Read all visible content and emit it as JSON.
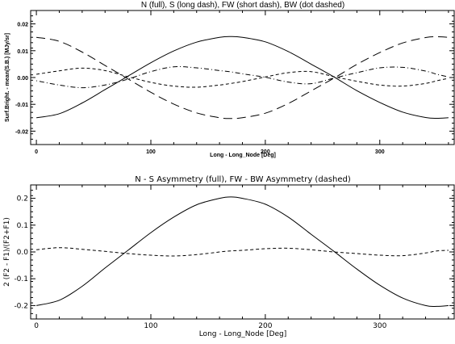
{
  "chart_data": [
    {
      "type": "line",
      "title": "N (full), S (long dash), FW (short dash), BW (dot dashed)",
      "xlabel": "Long - Long_Node [Deg]",
      "ylabel": "Surf.Bright. - mean(S.B.) [MJy/sr]",
      "xlim": [
        -5,
        365
      ],
      "ylim": [
        -0.025,
        0.025
      ],
      "xticks": [
        0,
        100,
        200,
        300
      ],
      "yticks": [
        -0.02,
        -0.01,
        0.0,
        0.01,
        0.02
      ],
      "xtick_labels": [
        "0",
        "100",
        "200",
        "300"
      ],
      "ytick_labels": [
        "-0.02",
        "-0.01",
        "0.00",
        "0.01",
        "0.02"
      ],
      "x": [
        0,
        20,
        40,
        60,
        80,
        100,
        120,
        140,
        160,
        170,
        180,
        200,
        220,
        240,
        260,
        280,
        300,
        320,
        340,
        350,
        360
      ],
      "series": [
        {
          "name": "N",
          "style": "solid",
          "values": [
            -0.015,
            -0.0135,
            -0.0095,
            -0.0045,
            0.0005,
            0.0055,
            0.0099,
            0.0132,
            0.015,
            0.0153,
            0.015,
            0.0133,
            0.0097,
            0.005,
            0.0002,
            -0.0049,
            -0.0093,
            -0.0129,
            -0.0149,
            -0.0152,
            -0.015
          ]
        },
        {
          "name": "S",
          "style": "long-dash",
          "values": [
            0.015,
            0.0135,
            0.0095,
            0.0045,
            -0.0005,
            -0.0055,
            -0.0099,
            -0.0132,
            -0.015,
            -0.0153,
            -0.015,
            -0.0133,
            -0.0097,
            -0.005,
            -0.0002,
            0.0049,
            0.0093,
            0.0129,
            0.0149,
            0.0152,
            0.015
          ]
        },
        {
          "name": "FW",
          "style": "short-dash",
          "values": [
            0.0012,
            0.0025,
            0.0035,
            0.0026,
            0.0003,
            -0.0018,
            -0.0032,
            -0.0036,
            -0.0028,
            -0.0022,
            -0.0015,
            0.0002,
            0.0018,
            0.0022,
            0.0003,
            -0.0014,
            -0.0028,
            -0.0032,
            -0.0022,
            -0.0012,
            -0.0003
          ]
        },
        {
          "name": "BW",
          "style": "dot-dash",
          "values": [
            -0.0012,
            -0.0028,
            -0.0038,
            -0.0028,
            -0.0006,
            0.0022,
            0.004,
            0.0036,
            0.0026,
            0.0021,
            0.0014,
            0.0001,
            -0.0017,
            -0.0023,
            -0.0002,
            0.0018,
            0.0036,
            0.0038,
            0.0024,
            0.0012,
            0.0002
          ]
        }
      ]
    },
    {
      "type": "line",
      "title": "N - S Asymmetry (full), FW - BW Asymmetry (dashed)",
      "xlabel": "Long - Long_Node [Deg]",
      "ylabel": "2 (F2 - F1)/(F2+F1)",
      "xlim": [
        -5,
        365
      ],
      "ylim": [
        -0.25,
        0.25
      ],
      "xticks": [
        0,
        100,
        200,
        300
      ],
      "yticks": [
        -0.2,
        -0.1,
        0.0,
        0.1,
        0.2
      ],
      "xtick_labels": [
        "0",
        "100",
        "200",
        "300"
      ],
      "ytick_labels": [
        "-0.2",
        "-0.1",
        "0.0",
        "0.1",
        "0.2"
      ],
      "x": [
        0,
        20,
        40,
        60,
        80,
        100,
        120,
        140,
        160,
        170,
        180,
        200,
        220,
        240,
        260,
        280,
        300,
        320,
        340,
        350,
        360
      ],
      "series": [
        {
          "name": "N - S",
          "style": "solid",
          "values": [
            -0.2,
            -0.18,
            -0.128,
            -0.06,
            0.006,
            0.072,
            0.13,
            0.176,
            0.2,
            0.205,
            0.2,
            0.178,
            0.13,
            0.066,
            0.002,
            -0.064,
            -0.124,
            -0.172,
            -0.2,
            -0.203,
            -0.2
          ]
        },
        {
          "name": "FW - BW",
          "style": "dashed",
          "values": [
            0.008,
            0.016,
            0.01,
            0.002,
            -0.006,
            -0.012,
            -0.015,
            -0.01,
            0.0,
            0.004,
            0.006,
            0.012,
            0.014,
            0.008,
            0.0,
            -0.006,
            -0.012,
            -0.014,
            -0.004,
            0.004,
            0.006
          ]
        }
      ]
    }
  ]
}
